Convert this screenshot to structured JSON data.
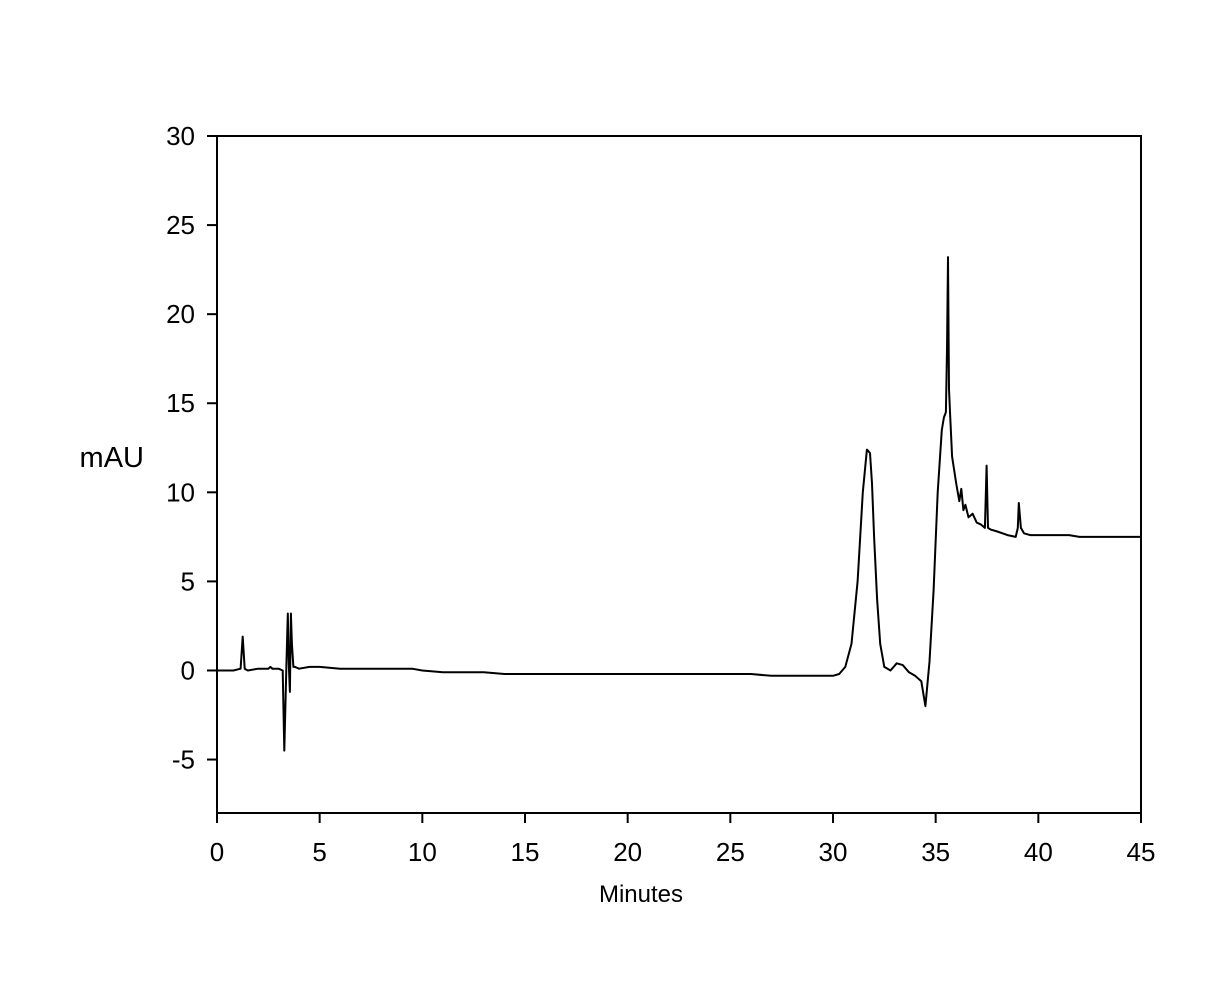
{
  "chart_data": {
    "type": "line",
    "title": "",
    "xlabel": "Minutes",
    "ylabel": "mAU",
    "xlim": [
      0,
      45
    ],
    "ylim": [
      -8,
      30
    ],
    "x_ticks": [
      0,
      5,
      10,
      15,
      20,
      25,
      30,
      35,
      40,
      45
    ],
    "y_ticks": [
      -5,
      0,
      5,
      10,
      15,
      20,
      25,
      30
    ],
    "grid": false,
    "legend": "none",
    "line_color": "#000000",
    "series": [
      {
        "x": [
          0,
          0.8,
          1.15,
          1.25,
          1.35,
          1.5,
          2.0,
          2.5,
          2.6,
          2.7,
          3.0,
          3.2,
          3.28,
          3.33,
          3.38,
          3.45,
          3.5,
          3.55,
          3.6,
          3.65,
          3.72,
          3.8,
          4.0,
          4.5,
          5.0,
          6.0,
          7.0,
          8.0,
          9.0,
          9.5,
          10.0,
          11.0,
          12.0,
          13.0,
          14.0,
          15.0,
          16.0,
          17.0,
          18.0,
          19.0,
          20.0,
          21.0,
          22.0,
          23.0,
          24.0,
          25.0,
          26.0,
          27.0,
          28.0,
          29.0,
          29.5,
          30.0,
          30.3,
          30.6,
          30.9,
          31.2,
          31.45,
          31.65,
          31.8,
          31.9,
          32.0,
          32.15,
          32.3,
          32.5,
          32.8,
          33.1,
          33.4,
          33.7,
          34.0,
          34.3,
          34.5,
          34.7,
          34.9,
          35.1,
          35.3,
          35.4,
          35.5,
          35.55,
          35.6,
          35.65,
          35.7,
          35.8,
          36.0,
          36.15,
          36.25,
          36.35,
          36.45,
          36.6,
          36.8,
          37.0,
          37.2,
          37.4,
          37.48,
          37.55,
          37.7,
          38.0,
          38.5,
          38.9,
          39.0,
          39.05,
          39.15,
          39.3,
          39.6,
          40.0,
          40.5,
          41.0,
          41.5,
          42.0,
          43.0,
          44.0,
          45.0
        ],
        "y": [
          0.0,
          0.0,
          0.1,
          1.9,
          0.1,
          0.0,
          0.1,
          0.1,
          0.2,
          0.1,
          0.1,
          0.0,
          -4.5,
          -2.0,
          0.3,
          3.2,
          0.2,
          -1.2,
          3.2,
          1.5,
          0.2,
          0.2,
          0.1,
          0.2,
          0.2,
          0.1,
          0.1,
          0.1,
          0.1,
          0.1,
          0.0,
          -0.1,
          -0.1,
          -0.1,
          -0.2,
          -0.2,
          -0.2,
          -0.2,
          -0.2,
          -0.2,
          -0.2,
          -0.2,
          -0.2,
          -0.2,
          -0.2,
          -0.2,
          -0.2,
          -0.3,
          -0.3,
          -0.3,
          -0.3,
          -0.3,
          -0.2,
          0.2,
          1.5,
          5.0,
          10.0,
          12.4,
          12.2,
          10.5,
          7.5,
          4.0,
          1.5,
          0.2,
          0.0,
          0.4,
          0.3,
          -0.1,
          -0.3,
          -0.6,
          -2.0,
          0.5,
          4.5,
          10.0,
          13.5,
          14.2,
          14.5,
          18.0,
          23.2,
          15.8,
          14.5,
          12.0,
          10.5,
          9.5,
          10.2,
          9.0,
          9.3,
          8.6,
          8.8,
          8.3,
          8.2,
          8.0,
          11.5,
          8.0,
          7.9,
          7.8,
          7.6,
          7.5,
          8.0,
          9.4,
          8.0,
          7.7,
          7.6,
          7.6,
          7.6,
          7.6,
          7.6,
          7.5,
          7.5,
          7.5,
          7.5
        ]
      }
    ]
  }
}
